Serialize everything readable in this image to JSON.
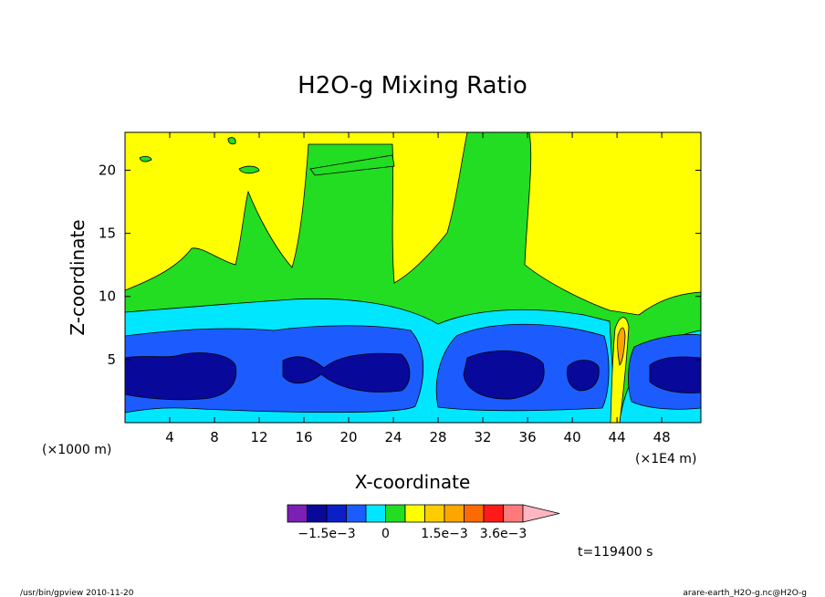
{
  "chart_data": {
    "type": "heatmap",
    "title": "H2O-g Mixing Ratio",
    "xlabel": "X-coordinate",
    "ylabel": "Z-coordinate",
    "x_unit_left": "(×1000 m)",
    "x_unit_right": "(×1E4 m)",
    "xlim": [
      0,
      51.5
    ],
    "ylim": [
      0,
      23
    ],
    "x_ticks": [
      4,
      8,
      12,
      16,
      20,
      24,
      28,
      32,
      36,
      40,
      44,
      48
    ],
    "y_ticks": [
      5,
      10,
      15,
      20
    ],
    "colorbar": {
      "colors": [
        "#7b1fb5",
        "#08089a",
        "#0a1fc6",
        "#1c5cff",
        "#00e6ff",
        "#22dd22",
        "#ffff00",
        "#ffcc00",
        "#ffa500",
        "#ff6a00",
        "#ff1a1a",
        "#ff7a7a",
        "#ffb6c1"
      ],
      "labels": [
        {
          "text": "−1.5e−3",
          "at_box": 2
        },
        {
          "text": "0",
          "at_box": 5
        },
        {
          "text": "1.5e−3",
          "at_box": 8
        },
        {
          "text": "3.6e−3",
          "at_box": 11
        }
      ]
    },
    "time_label": "t=119400 s"
  },
  "footer": {
    "left": "/usr/bin/gpview   2010-11-20",
    "right": "arare-earth_H2O-g.nc@H2O-g"
  }
}
